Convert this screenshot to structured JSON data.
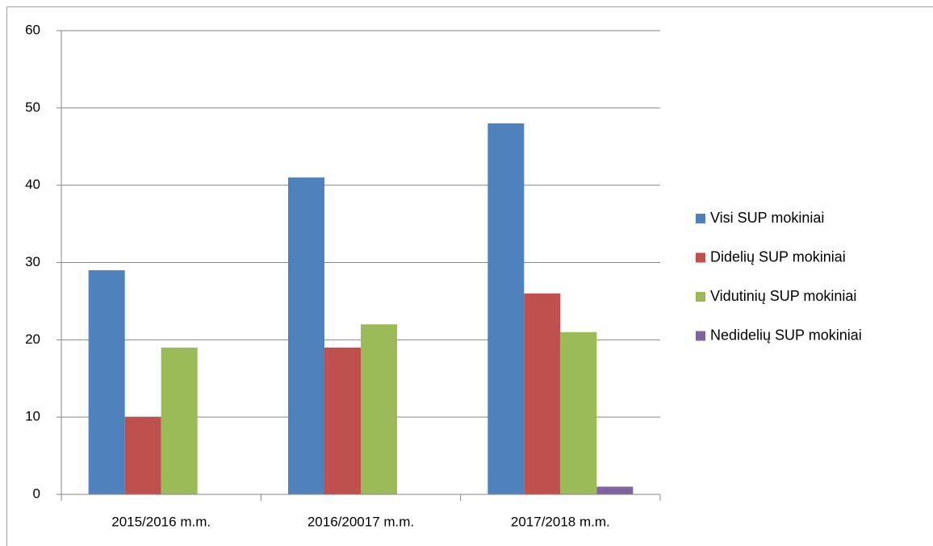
{
  "chart_data": {
    "type": "bar",
    "categories": [
      "2015/2016 m.m.",
      "2016/20017 m.m.",
      "2017/2018 m.m."
    ],
    "series": [
      {
        "name": "Visi SUP mokiniai",
        "color": "#4f81bd",
        "values": [
          29,
          41,
          48
        ]
      },
      {
        "name": "Didelių SUP mokiniai",
        "color": "#c0504d",
        "values": [
          10,
          19,
          26
        ]
      },
      {
        "name": "Vidutinių SUP mokiniai",
        "color": "#9bbb59",
        "values": [
          19,
          22,
          21
        ]
      },
      {
        "name": "Nedidelių SUP mokiniai",
        "color": "#8064a2",
        "values": [
          0,
          0,
          1
        ]
      }
    ],
    "ylim": [
      0,
      60
    ],
    "yticks": [
      0,
      10,
      20,
      30,
      40,
      50,
      60
    ],
    "grid": true,
    "legend": "right"
  }
}
